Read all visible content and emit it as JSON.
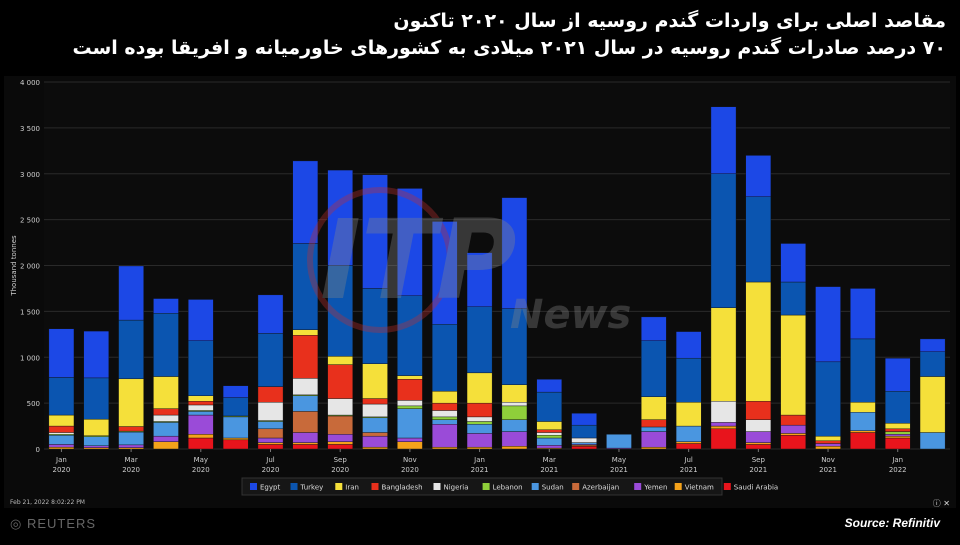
{
  "header": {
    "title": "مقاصد اصلی برای واردات گندم روسیه از سال ۲۰۲۰ تاکنون",
    "subtitle": "۷۰ درصد صادرات گندم روسیه در سال ۲۰۲۱ میلادی به کشورهای خاورمیانه و افریقا بوده است"
  },
  "footer": {
    "timestamp": "Feb 21, 2022 8:02:22 PM",
    "corner": "ⓘ ✕",
    "brand": "◎ REUTERS",
    "source": "Source: Refinitiv",
    "watermark_main": "ITP",
    "watermark_sub": "News"
  },
  "colors": {
    "Egypt": "#1c48e6",
    "Turkey": "#0b55b0",
    "Iran": "#f5e03a",
    "Bangladesh": "#e8301c",
    "Nigeria": "#e6e6e6",
    "Lebanon": "#8fcf3a",
    "Sudan": "#4a96e0",
    "Azerbaijan": "#c86a3a",
    "Yemen": "#9a4bd8",
    "Vietnam": "#f4a21a",
    "Saudi Arabia": "#e8141c"
  },
  "chart_data": {
    "type": "bar",
    "stacked": true,
    "ylabel": "Thousand tonnes",
    "ylim": [
      0,
      4000
    ],
    "yticks": [
      "0",
      "500",
      "1 000",
      "1 500",
      "2 000",
      "2 500",
      "3 000",
      "3 500",
      "4 000"
    ],
    "xtick_labels": [
      {
        "month": "Jan",
        "year": "2020",
        "index": 0
      },
      {
        "month": "Mar",
        "year": "2020",
        "index": 2
      },
      {
        "month": "May",
        "year": "2020",
        "index": 4
      },
      {
        "month": "Jul",
        "year": "2020",
        "index": 6
      },
      {
        "month": "Sep",
        "year": "2020",
        "index": 8
      },
      {
        "month": "Nov",
        "year": "2020",
        "index": 10
      },
      {
        "month": "Jan",
        "year": "2021",
        "index": 12
      },
      {
        "month": "Mar",
        "year": "2021",
        "index": 14
      },
      {
        "month": "May",
        "year": "2021",
        "index": 16
      },
      {
        "month": "Jul",
        "year": "2021",
        "index": 18
      },
      {
        "month": "Sep",
        "year": "2021",
        "index": 20
      },
      {
        "month": "Nov",
        "year": "2021",
        "index": 22
      },
      {
        "month": "Jan",
        "year": "2022",
        "index": 24
      }
    ],
    "categories": [
      "Jan 2020",
      "Feb 2020",
      "Mar 2020",
      "Apr 2020",
      "May 2020",
      "Jun 2020",
      "Jul 2020",
      "Aug 2020",
      "Sep 2020",
      "Oct 2020",
      "Nov 2020",
      "Dec 2020",
      "Jan 2021",
      "Feb 2021",
      "Mar 2021",
      "Apr 2021",
      "May 2021",
      "Jun 2021",
      "Jul 2021",
      "Aug 2021",
      "Sep 2021",
      "Oct 2021",
      "Nov 2021",
      "Dec 2021",
      "Jan 2022",
      "Feb 2022"
    ],
    "legend_position": "bottom",
    "series": [
      {
        "name": "Saudi Arabia",
        "values": [
          0,
          0,
          0,
          0,
          120,
          100,
          50,
          50,
          50,
          0,
          0,
          0,
          0,
          0,
          0,
          30,
          0,
          0,
          60,
          220,
          50,
          150,
          0,
          180,
          120,
          0
        ]
      },
      {
        "name": "Vietnam",
        "values": [
          20,
          15,
          15,
          80,
          40,
          20,
          20,
          20,
          30,
          20,
          80,
          20,
          20,
          30,
          10,
          10,
          0,
          20,
          20,
          30,
          20,
          20,
          30,
          20,
          20,
          0
        ]
      },
      {
        "name": "Yemen",
        "values": [
          30,
          20,
          30,
          60,
          210,
          0,
          50,
          110,
          80,
          120,
          40,
          250,
          150,
          160,
          30,
          10,
          10,
          170,
          0,
          40,
          120,
          90,
          30,
          0,
          20,
          0
        ]
      },
      {
        "name": "Azerbaijan",
        "values": [
          0,
          0,
          0,
          0,
          0,
          0,
          100,
          230,
          200,
          40,
          0,
          0,
          0,
          0,
          0,
          0,
          0,
          0,
          0,
          0,
          0,
          0,
          0,
          0,
          0,
          0
        ]
      },
      {
        "name": "Sudan",
        "values": [
          100,
          100,
          140,
          150,
          40,
          230,
          80,
          170,
          0,
          160,
          320,
          50,
          100,
          130,
          80,
          20,
          150,
          50,
          170,
          0,
          0,
          0,
          0,
          200,
          0,
          180
        ]
      },
      {
        "name": "Lebanon",
        "values": [
          10,
          10,
          10,
          10,
          10,
          10,
          10,
          10,
          10,
          10,
          30,
          30,
          30,
          150,
          30,
          0,
          0,
          0,
          0,
          0,
          0,
          0,
          0,
          0,
          30,
          0
        ]
      },
      {
        "name": "Nigeria",
        "values": [
          20,
          0,
          0,
          70,
          60,
          0,
          200,
          180,
          180,
          140,
          60,
          70,
          50,
          40,
          30,
          50,
          0,
          0,
          0,
          230,
          130,
          0,
          0,
          0,
          0,
          0
        ]
      },
      {
        "name": "Bangladesh",
        "values": [
          70,
          0,
          50,
          70,
          40,
          0,
          170,
          470,
          370,
          60,
          230,
          80,
          150,
          0,
          30,
          0,
          0,
          80,
          0,
          0,
          200,
          110,
          30,
          0,
          30,
          0
        ]
      },
      {
        "name": "Iran",
        "values": [
          120,
          180,
          520,
          350,
          60,
          0,
          0,
          60,
          90,
          380,
          40,
          130,
          330,
          190,
          90,
          0,
          0,
          250,
          260,
          1020,
          1300,
          1090,
          50,
          110,
          60,
          610
        ]
      },
      {
        "name": "Turkey",
        "values": [
          410,
          450,
          640,
          690,
          600,
          200,
          580,
          940,
          990,
          820,
          870,
          730,
          720,
          830,
          320,
          140,
          0,
          610,
          480,
          1460,
          930,
          360,
          810,
          690,
          350,
          270
        ]
      },
      {
        "name": "Egypt",
        "values": [
          530,
          510,
          590,
          160,
          450,
          130,
          420,
          900,
          1040,
          1240,
          1170,
          1120,
          590,
          1210,
          140,
          130,
          0,
          260,
          290,
          730,
          450,
          420,
          820,
          550,
          360,
          140
        ]
      }
    ]
  }
}
